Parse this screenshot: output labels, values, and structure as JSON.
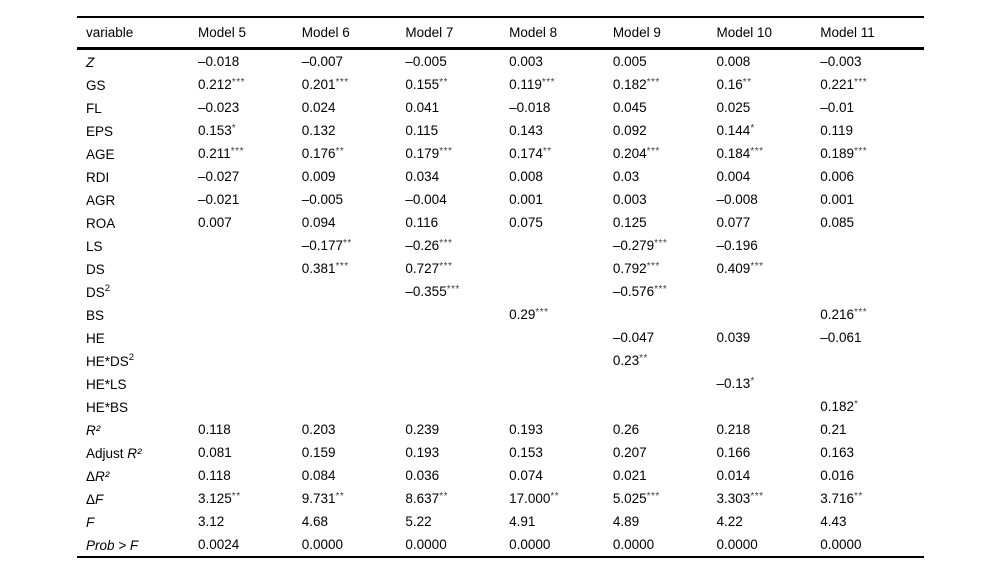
{
  "table": {
    "columns": [
      "variable",
      "Model 5",
      "Model 6",
      "Model 7",
      "Model 8",
      "Model 9",
      "Model 10",
      "Model 11"
    ],
    "rows": [
      {
        "label": {
          "pre": "",
          "it": "Z",
          "sup": ""
        },
        "cells": [
          {
            "v": "–0.018",
            "s": ""
          },
          {
            "v": "–0.007",
            "s": ""
          },
          {
            "v": "–0.005",
            "s": ""
          },
          {
            "v": "0.003",
            "s": ""
          },
          {
            "v": "0.005",
            "s": ""
          },
          {
            "v": "0.008",
            "s": ""
          },
          {
            "v": "–0.003",
            "s": ""
          }
        ]
      },
      {
        "label": {
          "pre": "GS",
          "it": "",
          "sup": ""
        },
        "cells": [
          {
            "v": "0.212",
            "s": "***"
          },
          {
            "v": "0.201",
            "s": "***"
          },
          {
            "v": "0.155",
            "s": "**"
          },
          {
            "v": "0.119",
            "s": "***"
          },
          {
            "v": "0.182",
            "s": "***"
          },
          {
            "v": "0.16",
            "s": "**"
          },
          {
            "v": "0.221",
            "s": "***"
          }
        ]
      },
      {
        "label": {
          "pre": "FL",
          "it": "",
          "sup": ""
        },
        "cells": [
          {
            "v": "–0.023",
            "s": ""
          },
          {
            "v": "0.024",
            "s": ""
          },
          {
            "v": "0.041",
            "s": ""
          },
          {
            "v": "–0.018",
            "s": ""
          },
          {
            "v": "0.045",
            "s": ""
          },
          {
            "v": "0.025",
            "s": ""
          },
          {
            "v": "–0.01",
            "s": ""
          }
        ]
      },
      {
        "label": {
          "pre": "EPS",
          "it": "",
          "sup": ""
        },
        "cells": [
          {
            "v": "0.153",
            "s": "*"
          },
          {
            "v": "0.132",
            "s": ""
          },
          {
            "v": "0.115",
            "s": ""
          },
          {
            "v": "0.143",
            "s": ""
          },
          {
            "v": "0.092",
            "s": ""
          },
          {
            "v": "0.144",
            "s": "*"
          },
          {
            "v": "0.119",
            "s": ""
          }
        ]
      },
      {
        "label": {
          "pre": "AGE",
          "it": "",
          "sup": ""
        },
        "cells": [
          {
            "v": "0.211",
            "s": "***"
          },
          {
            "v": "0.176",
            "s": "**"
          },
          {
            "v": "0.179",
            "s": "***"
          },
          {
            "v": "0.174",
            "s": "**"
          },
          {
            "v": "0.204",
            "s": "***"
          },
          {
            "v": "0.184",
            "s": "***"
          },
          {
            "v": "0.189",
            "s": "***"
          }
        ]
      },
      {
        "label": {
          "pre": "RDI",
          "it": "",
          "sup": ""
        },
        "cells": [
          {
            "v": "–0.027",
            "s": ""
          },
          {
            "v": "0.009",
            "s": ""
          },
          {
            "v": "0.034",
            "s": ""
          },
          {
            "v": "0.008",
            "s": ""
          },
          {
            "v": "0.03",
            "s": ""
          },
          {
            "v": "0.004",
            "s": ""
          },
          {
            "v": "0.006",
            "s": ""
          }
        ]
      },
      {
        "label": {
          "pre": "AGR",
          "it": "",
          "sup": ""
        },
        "cells": [
          {
            "v": "–0.021",
            "s": ""
          },
          {
            "v": "–0.005",
            "s": ""
          },
          {
            "v": "–0.004",
            "s": ""
          },
          {
            "v": "0.001",
            "s": ""
          },
          {
            "v": "0.003",
            "s": ""
          },
          {
            "v": "–0.008",
            "s": ""
          },
          {
            "v": "0.001",
            "s": ""
          }
        ]
      },
      {
        "label": {
          "pre": "ROA",
          "it": "",
          "sup": ""
        },
        "cells": [
          {
            "v": "0.007",
            "s": ""
          },
          {
            "v": "0.094",
            "s": ""
          },
          {
            "v": "0.116",
            "s": ""
          },
          {
            "v": "0.075",
            "s": ""
          },
          {
            "v": "0.125",
            "s": ""
          },
          {
            "v": "0.077",
            "s": ""
          },
          {
            "v": "0.085",
            "s": ""
          }
        ]
      },
      {
        "label": {
          "pre": "LS",
          "it": "",
          "sup": ""
        },
        "cells": [
          {
            "v": "",
            "s": ""
          },
          {
            "v": "–0.177",
            "s": "**"
          },
          {
            "v": "–0.26",
            "s": "***"
          },
          {
            "v": "",
            "s": ""
          },
          {
            "v": "–0.279",
            "s": "***"
          },
          {
            "v": "–0.196",
            "s": ""
          },
          {
            "v": "",
            "s": ""
          }
        ]
      },
      {
        "label": {
          "pre": "DS",
          "it": "",
          "sup": ""
        },
        "cells": [
          {
            "v": "",
            "s": ""
          },
          {
            "v": "0.381",
            "s": "***"
          },
          {
            "v": "0.727",
            "s": "***"
          },
          {
            "v": "",
            "s": ""
          },
          {
            "v": "0.792",
            "s": "***"
          },
          {
            "v": "0.409",
            "s": "***"
          },
          {
            "v": "",
            "s": ""
          }
        ]
      },
      {
        "label": {
          "pre": "DS",
          "it": "",
          "sup": "2"
        },
        "cells": [
          {
            "v": "",
            "s": ""
          },
          {
            "v": "",
            "s": ""
          },
          {
            "v": "–0.355",
            "s": "***"
          },
          {
            "v": "",
            "s": ""
          },
          {
            "v": "–0.576",
            "s": "***"
          },
          {
            "v": "",
            "s": ""
          },
          {
            "v": "",
            "s": ""
          }
        ]
      },
      {
        "label": {
          "pre": "BS",
          "it": "",
          "sup": ""
        },
        "cells": [
          {
            "v": "",
            "s": ""
          },
          {
            "v": "",
            "s": ""
          },
          {
            "v": "",
            "s": ""
          },
          {
            "v": "0.29",
            "s": "***"
          },
          {
            "v": "",
            "s": ""
          },
          {
            "v": "",
            "s": ""
          },
          {
            "v": "0.216",
            "s": "***"
          }
        ]
      },
      {
        "label": {
          "pre": "HE",
          "it": "",
          "sup": ""
        },
        "cells": [
          {
            "v": "",
            "s": ""
          },
          {
            "v": "",
            "s": ""
          },
          {
            "v": "",
            "s": ""
          },
          {
            "v": "",
            "s": ""
          },
          {
            "v": "–0.047",
            "s": ""
          },
          {
            "v": "0.039",
            "s": ""
          },
          {
            "v": "–0.061",
            "s": ""
          }
        ]
      },
      {
        "label": {
          "pre": "HE*DS",
          "it": "",
          "sup": "2"
        },
        "cells": [
          {
            "v": "",
            "s": ""
          },
          {
            "v": "",
            "s": ""
          },
          {
            "v": "",
            "s": ""
          },
          {
            "v": "",
            "s": ""
          },
          {
            "v": "0.23",
            "s": "**"
          },
          {
            "v": "",
            "s": ""
          },
          {
            "v": "",
            "s": ""
          }
        ]
      },
      {
        "label": {
          "pre": "HE*LS",
          "it": "",
          "sup": ""
        },
        "cells": [
          {
            "v": "",
            "s": ""
          },
          {
            "v": "",
            "s": ""
          },
          {
            "v": "",
            "s": ""
          },
          {
            "v": "",
            "s": ""
          },
          {
            "v": "",
            "s": ""
          },
          {
            "v": "–0.13",
            "s": "*"
          },
          {
            "v": "",
            "s": ""
          }
        ]
      },
      {
        "label": {
          "pre": "HE*BS",
          "it": "",
          "sup": ""
        },
        "cells": [
          {
            "v": "",
            "s": ""
          },
          {
            "v": "",
            "s": ""
          },
          {
            "v": "",
            "s": ""
          },
          {
            "v": "",
            "s": ""
          },
          {
            "v": "",
            "s": ""
          },
          {
            "v": "",
            "s": ""
          },
          {
            "v": "0.182",
            "s": "*"
          }
        ]
      },
      {
        "label": {
          "pre": "",
          "it": "R²",
          "sup": ""
        },
        "cells": [
          {
            "v": "0.118",
            "s": ""
          },
          {
            "v": "0.203",
            "s": ""
          },
          {
            "v": "0.239",
            "s": ""
          },
          {
            "v": "0.193",
            "s": ""
          },
          {
            "v": "0.26",
            "s": ""
          },
          {
            "v": "0.218",
            "s": ""
          },
          {
            "v": "0.21",
            "s": ""
          }
        ]
      },
      {
        "label": {
          "pre": "Adjust ",
          "it": "R²",
          "sup": ""
        },
        "cells": [
          {
            "v": "0.081",
            "s": ""
          },
          {
            "v": "0.159",
            "s": ""
          },
          {
            "v": "0.193",
            "s": ""
          },
          {
            "v": "0.153",
            "s": ""
          },
          {
            "v": "0.207",
            "s": ""
          },
          {
            "v": "0.166",
            "s": ""
          },
          {
            "v": "0.163",
            "s": ""
          }
        ]
      },
      {
        "label": {
          "pre": "Δ",
          "it": "R²",
          "sup": ""
        },
        "cells": [
          {
            "v": "0.118",
            "s": ""
          },
          {
            "v": "0.084",
            "s": ""
          },
          {
            "v": "0.036",
            "s": ""
          },
          {
            "v": "0.074",
            "s": ""
          },
          {
            "v": "0.021",
            "s": ""
          },
          {
            "v": "0.014",
            "s": ""
          },
          {
            "v": "0.016",
            "s": ""
          }
        ]
      },
      {
        "label": {
          "pre": "Δ",
          "it": "F",
          "sup": ""
        },
        "cells": [
          {
            "v": "3.125",
            "s": "**"
          },
          {
            "v": "9.731",
            "s": "**"
          },
          {
            "v": "8.637",
            "s": "**"
          },
          {
            "v": "17.000",
            "s": "**"
          },
          {
            "v": "5.025",
            "s": "***"
          },
          {
            "v": "3.303",
            "s": "***"
          },
          {
            "v": "3.716",
            "s": "**"
          }
        ]
      },
      {
        "label": {
          "pre": "",
          "it": "F",
          "sup": ""
        },
        "cells": [
          {
            "v": "3.12",
            "s": ""
          },
          {
            "v": "4.68",
            "s": ""
          },
          {
            "v": "5.22",
            "s": ""
          },
          {
            "v": "4.91",
            "s": ""
          },
          {
            "v": "4.89",
            "s": ""
          },
          {
            "v": "4.22",
            "s": ""
          },
          {
            "v": "4.43",
            "s": ""
          }
        ]
      },
      {
        "label": {
          "pre": "",
          "it": "Prob > F",
          "sup": ""
        },
        "cells": [
          {
            "v": "0.0024",
            "s": ""
          },
          {
            "v": "0.0000",
            "s": ""
          },
          {
            "v": "0.0000",
            "s": ""
          },
          {
            "v": "0.0000",
            "s": ""
          },
          {
            "v": "0.0000",
            "s": ""
          },
          {
            "v": "0.0000",
            "s": ""
          },
          {
            "v": "0.0000",
            "s": ""
          }
        ]
      }
    ]
  }
}
